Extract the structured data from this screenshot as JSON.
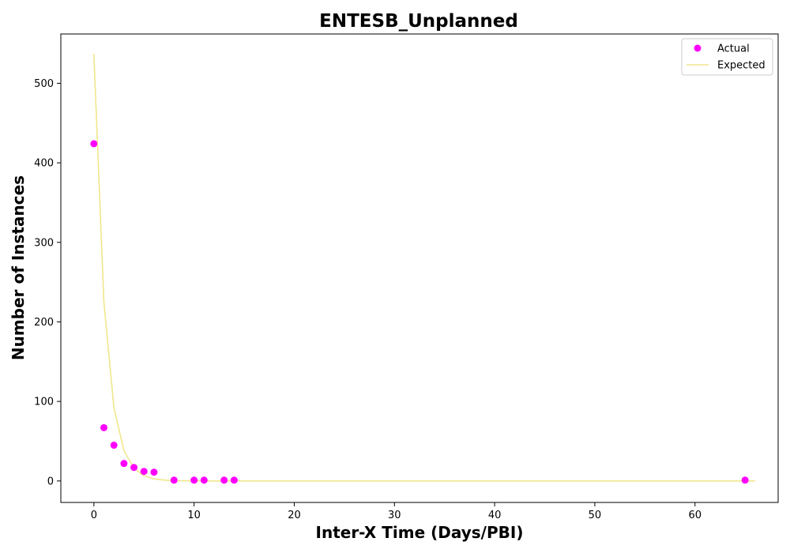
{
  "chart_data": {
    "type": "scatter",
    "title": "ENTESB_Unplanned",
    "xlabel": "Inter-X Time (Days/PBI)",
    "ylabel": "Number of Instances",
    "xlim": [
      -3.3,
      68.3
    ],
    "ylim": [
      -27,
      562
    ],
    "x_ticks": [
      0,
      10,
      20,
      30,
      40,
      50,
      60
    ],
    "y_ticks": [
      0,
      100,
      200,
      300,
      400,
      500
    ],
    "grid": false,
    "legend_position": "top-right",
    "series": [
      {
        "name": "Actual",
        "type": "scatter",
        "color": "#ff00ff",
        "x": [
          0,
          1,
          2,
          3,
          4,
          5,
          6,
          8,
          10,
          11,
          13,
          14,
          65
        ],
        "y": [
          424,
          67,
          45,
          22,
          17,
          12,
          11,
          1,
          1,
          1,
          1,
          1,
          1
        ]
      },
      {
        "name": "Expected",
        "type": "line",
        "color": "#f0e68c",
        "x": [
          0,
          1,
          2,
          3,
          4,
          5,
          6,
          7,
          8,
          9,
          10,
          12,
          15,
          20,
          30,
          40,
          50,
          60,
          66
        ],
        "y": [
          537,
          225,
          92,
          38,
          16,
          6.5,
          2.7,
          1.1,
          0.45,
          0.2,
          0.08,
          0.01,
          0,
          0,
          0,
          0,
          0,
          0,
          0
        ]
      }
    ]
  }
}
